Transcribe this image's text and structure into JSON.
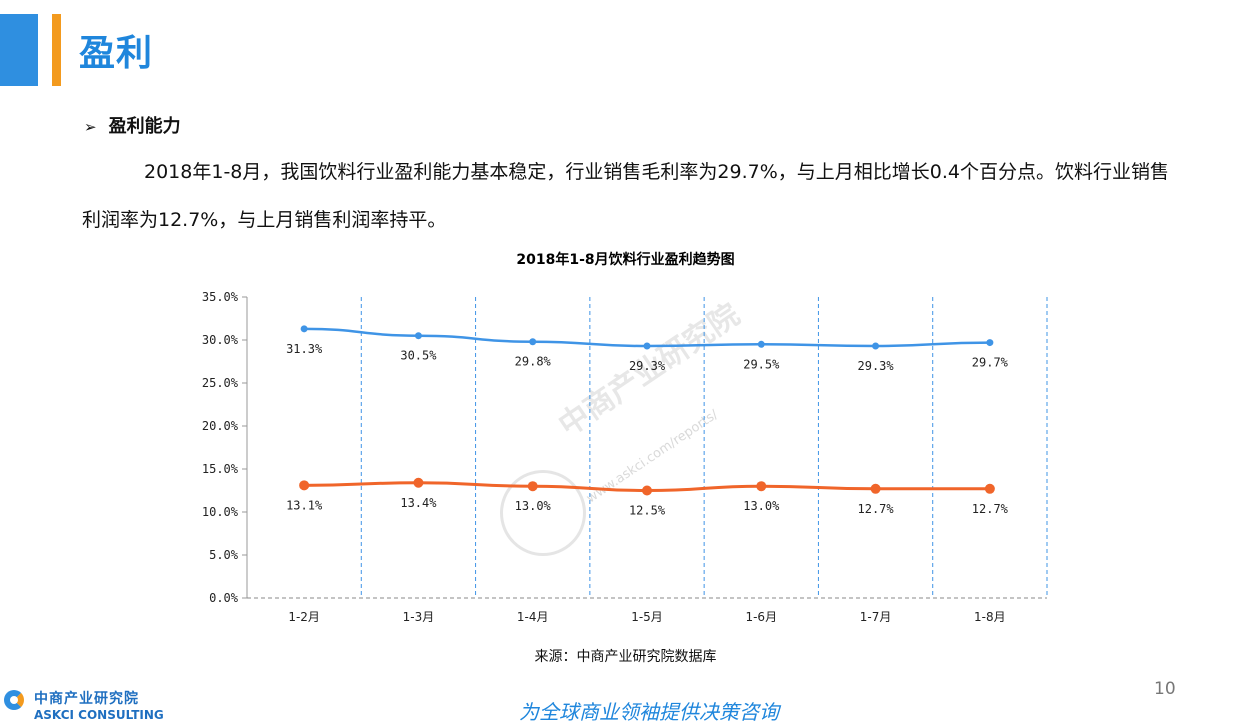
{
  "header": {
    "title": "盈利"
  },
  "section": {
    "arrow": "➢",
    "heading": "盈利能力"
  },
  "paragraph": "2018年1-8月，我国饮料行业盈利能力基本稳定，行业销售毛利率为29.7%，与上月相比增长0.4个百分点。饮料行业销售利润率为12.7%，与上月销售利润率持平。",
  "chart_data": {
    "type": "line",
    "title": "2018年1-8月饮料行业盈利趋势图",
    "categories": [
      "1-2月",
      "1-3月",
      "1-4月",
      "1-5月",
      "1-6月",
      "1-7月",
      "1-8月"
    ],
    "series": [
      {
        "values": [
          31.3,
          30.5,
          29.8,
          29.3,
          29.5,
          29.3,
          29.7
        ],
        "labels": [
          "31.3%",
          "30.5%",
          "29.8%",
          "29.3%",
          "29.5%",
          "29.3%",
          "29.7%"
        ],
        "color": "#3f94e6"
      },
      {
        "values": [
          13.1,
          13.4,
          13.0,
          12.5,
          13.0,
          12.7,
          12.7
        ],
        "labels": [
          "13.1%",
          "13.4%",
          "13.0%",
          "12.5%",
          "13.0%",
          "12.7%",
          "12.7%"
        ],
        "color": "#f0652a"
      }
    ],
    "yticks": [
      "0.0%",
      "5.0%",
      "10.0%",
      "15.0%",
      "20.0%",
      "25.0%",
      "30.0%",
      "35.0%"
    ],
    "ylim": [
      0,
      35
    ],
    "grid": "vertical dashed"
  },
  "source": "来源：中商产业研究院数据库",
  "watermark": {
    "name": "中商产业研究院",
    "url": "www.askci.com/reports/"
  },
  "page_number": "10",
  "slogan": "为全球商业领袖提供决策咨询",
  "logo": {
    "cn": "中商产业研究院",
    "en": "ASKCI CONSULTING"
  }
}
